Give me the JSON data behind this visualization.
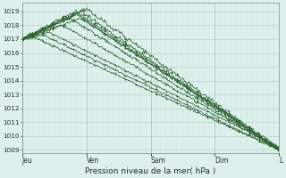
{
  "background_color": "#ddf0ec",
  "grid_color_major": "#a8c8c0",
  "grid_color_minor": "#c8e4e0",
  "line_color": "#2d6030",
  "title": "Pression niveau de la mer( hPa )",
  "ylim": [
    1008.8,
    1019.6
  ],
  "yticks": [
    1009,
    1010,
    1011,
    1012,
    1013,
    1014,
    1015,
    1016,
    1017,
    1018,
    1019
  ],
  "day_labels": [
    "Jeu",
    "Ven",
    "Sam",
    "Dim",
    "L"
  ],
  "day_positions": [
    0,
    24,
    48,
    72,
    96
  ],
  "xlim": [
    0,
    96
  ],
  "total_hours": 96
}
